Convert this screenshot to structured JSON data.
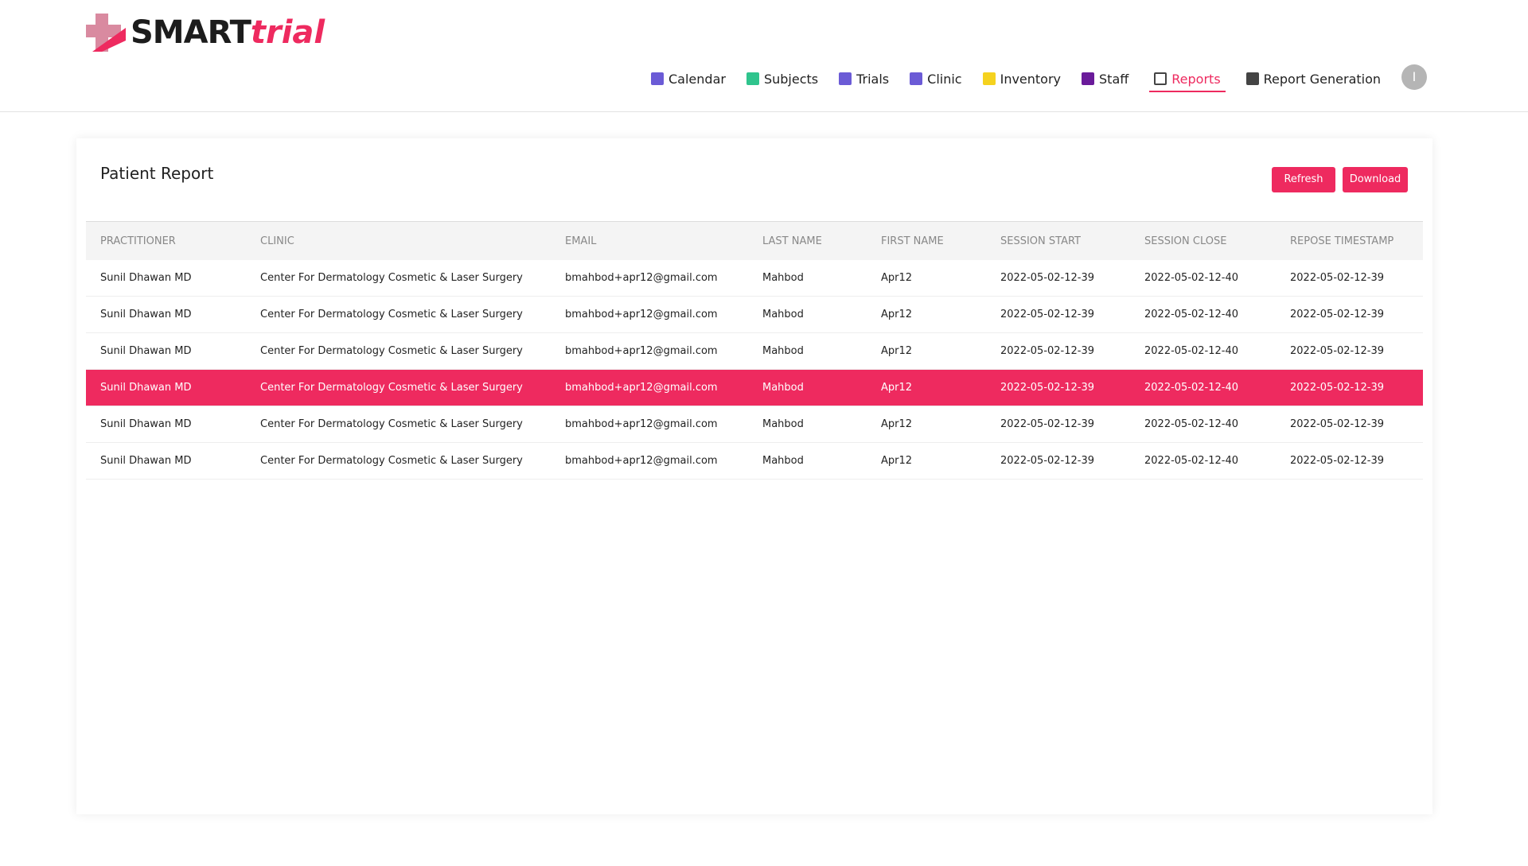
{
  "header": {
    "logo": {
      "primary": "SMART",
      "secondary": "trial"
    },
    "nav": [
      "Calendar",
      "Subjects",
      "Trials",
      "Clinic",
      "Inventory",
      "Staff",
      "Reports",
      "Report Generation"
    ],
    "active_nav": "Reports",
    "avatar": "I"
  },
  "report": {
    "title": "Patient Report",
    "buttons": [
      "Refresh",
      "Download"
    ],
    "table": {
      "columns": [
        "PRACTITIONER",
        "CLINIC",
        "EMAIL",
        "LAST NAME",
        "FIRST NAME",
        "SESSION START",
        "SESSION CLOSE",
        "REPOSE TIMESTAMP"
      ],
      "rows": [
        [
          "Sunil Dhawan MD",
          "Center For Dermatology Cosmetic & Laser Surgery",
          "bmahbod+apr12@gmail.com",
          "Mahbod",
          "Apr12",
          "2022-05-02-12-39",
          "2022-05-02-12-40",
          "2022-05-02-12-39"
        ],
        [
          "Sunil Dhawan MD",
          "Center For Dermatology Cosmetic & Laser Surgery",
          "bmahbod+apr12@gmail.com",
          "Mahbod",
          "Apr12",
          "2022-05-02-12-39",
          "2022-05-02-12-40",
          "2022-05-02-12-39"
        ],
        [
          "Sunil Dhawan MD",
          "Center For Dermatology Cosmetic & Laser Surgery",
          "bmahbod+apr12@gmail.com",
          "Mahbod",
          "Apr12",
          "2022-05-02-12-39",
          "2022-05-02-12-40",
          "2022-05-02-12-39"
        ],
        [
          "Sunil Dhawan MD",
          "Center For Dermatology Cosmetic & Laser Surgery",
          "bmahbod+apr12@gmail.com",
          "Mahbod",
          "Apr12",
          "2022-05-02-12-39",
          "2022-05-02-12-40",
          "2022-05-02-12-39"
        ],
        [
          "Sunil Dhawan MD",
          "Center For Dermatology Cosmetic & Laser Surgery",
          "bmahbod+apr12@gmail.com",
          "Mahbod",
          "Apr12",
          "2022-05-02-12-39",
          "2022-05-02-12-40",
          "2022-05-02-12-39"
        ],
        [
          "Sunil Dhawan MD",
          "Center For Dermatology Cosmetic & Laser Surgery",
          "bmahbod+apr12@gmail.com",
          "Mahbod",
          "Apr12",
          "2022-05-02-12-39",
          "2022-05-02-12-40",
          "2022-05-02-12-39"
        ]
      ],
      "selected_row": 3
    }
  }
}
